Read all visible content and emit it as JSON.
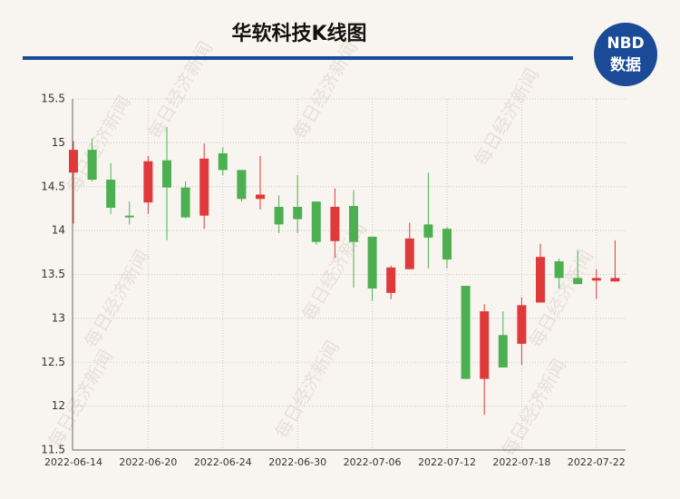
{
  "chart_data": {
    "type": "candlestick",
    "title": "华软科技K线图",
    "logo": {
      "line1": "NBD",
      "line2": "数据"
    },
    "watermark": "每日经济新闻",
    "categories": [
      "2022-06-14",
      null,
      null,
      null,
      "2022-06-20",
      null,
      null,
      null,
      "2022-06-24",
      null,
      null,
      null,
      "2022-06-30",
      null,
      null,
      null,
      "2022-07-06",
      null,
      null,
      null,
      "2022-07-12",
      null,
      null,
      null,
      "2022-07-18",
      null,
      null,
      null,
      "2022-07-22",
      null
    ],
    "open": [
      14.66,
      14.92,
      14.58,
      14.17,
      14.32,
      14.8,
      14.49,
      14.17,
      14.88,
      14.69,
      14.36,
      14.27,
      14.27,
      14.33,
      13.88,
      14.28,
      13.93,
      13.29,
      13.56,
      14.07,
      14.02,
      13.37,
      12.31,
      12.81,
      12.71,
      13.18,
      13.65,
      13.46,
      13.43,
      13.42
    ],
    "close": [
      14.92,
      14.58,
      14.26,
      14.15,
      14.79,
      14.49,
      14.15,
      14.82,
      14.69,
      14.36,
      14.41,
      14.07,
      14.13,
      13.87,
      14.27,
      13.87,
      13.34,
      13.58,
      13.91,
      13.92,
      13.67,
      12.31,
      13.08,
      12.44,
      13.15,
      13.7,
      13.46,
      13.39,
      13.46,
      13.46
    ],
    "high": [
      15.02,
      15.05,
      14.77,
      14.33,
      14.85,
      15.18,
      14.56,
      14.99,
      14.95,
      14.69,
      14.85,
      14.4,
      14.63,
      14.33,
      14.48,
      14.46,
      13.93,
      13.6,
      14.09,
      14.66,
      14.04,
      13.37,
      13.16,
      13.08,
      13.24,
      13.85,
      13.68,
      13.78,
      13.56,
      13.89
    ],
    "low": [
      14.08,
      14.56,
      14.19,
      14.07,
      14.19,
      13.89,
      14.14,
      14.02,
      14.63,
      14.33,
      14.24,
      13.97,
      13.97,
      13.84,
      13.69,
      13.35,
      13.2,
      13.22,
      13.56,
      13.57,
      13.57,
      12.31,
      11.9,
      12.44,
      12.47,
      13.18,
      13.34,
      13.39,
      13.22,
      13.42
    ],
    "up_color": "#e0393a",
    "down_color": "#4caf50",
    "ylim": [
      11.5,
      15.5
    ],
    "yticks": [
      11.5,
      12,
      12.5,
      13,
      13.5,
      14,
      14.5,
      15,
      15.5
    ],
    "grid": true
  }
}
